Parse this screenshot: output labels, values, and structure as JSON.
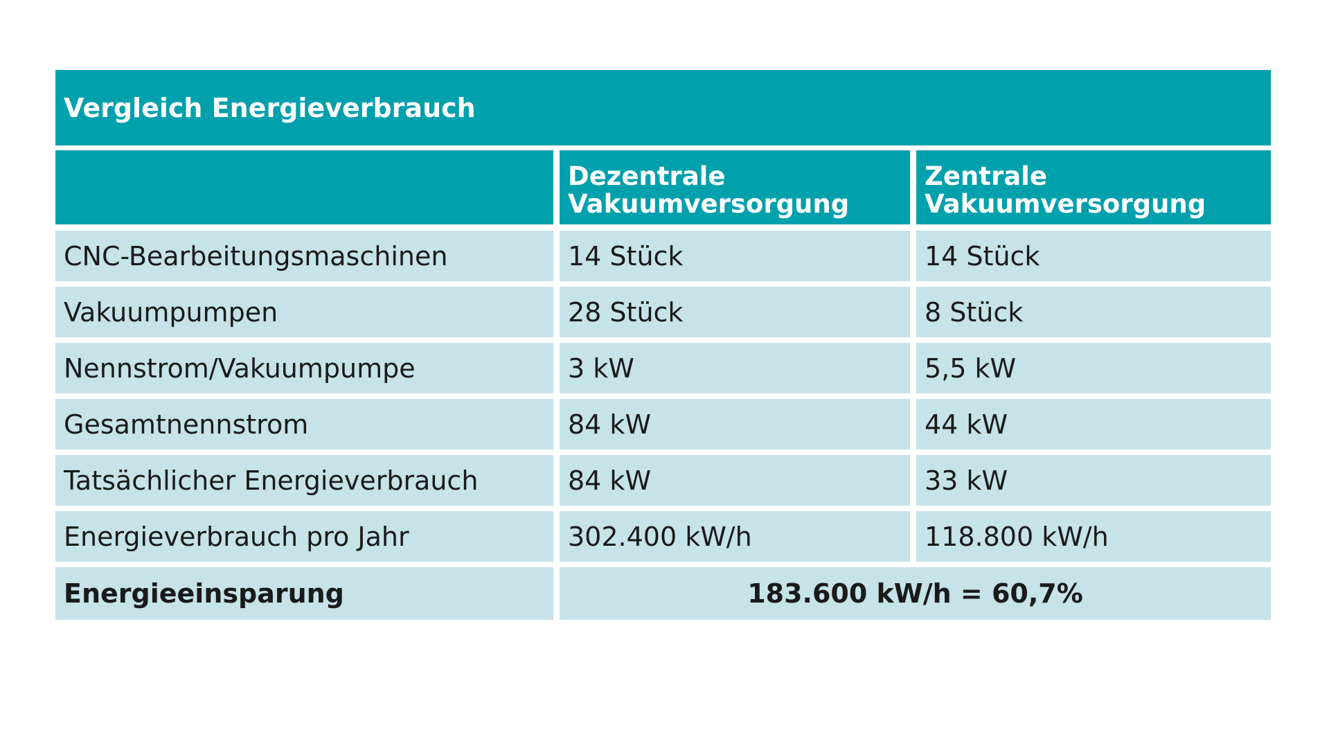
{
  "table": {
    "title": "Vergleich Energieverbrauch",
    "columns": [
      "Dezentrale Vakuumversorgung",
      "Zentrale Vakuumversorgung"
    ],
    "rows": [
      [
        "CNC-Bearbeitungsmaschinen",
        "14 Stück",
        "14 Stück"
      ],
      [
        "Vakuumpumpen",
        "28 Stück",
        "8 Stück"
      ],
      [
        "Nennstrom/Vakuumpumpe",
        "3 kW",
        "5,5 kW"
      ],
      [
        "Gesamtnennstrom",
        "84 kW",
        "44 kW"
      ],
      [
        "Tatsächlicher Energieverbrauch",
        "84 kW",
        "33 kW"
      ],
      [
        "Energieverbrauch pro Jahr",
        "302.400 kW/h",
        "118.800 kW/h"
      ]
    ],
    "summary": {
      "label": "Energieeinsparung",
      "value": "183.600 kW/h = 60,7%"
    }
  }
}
